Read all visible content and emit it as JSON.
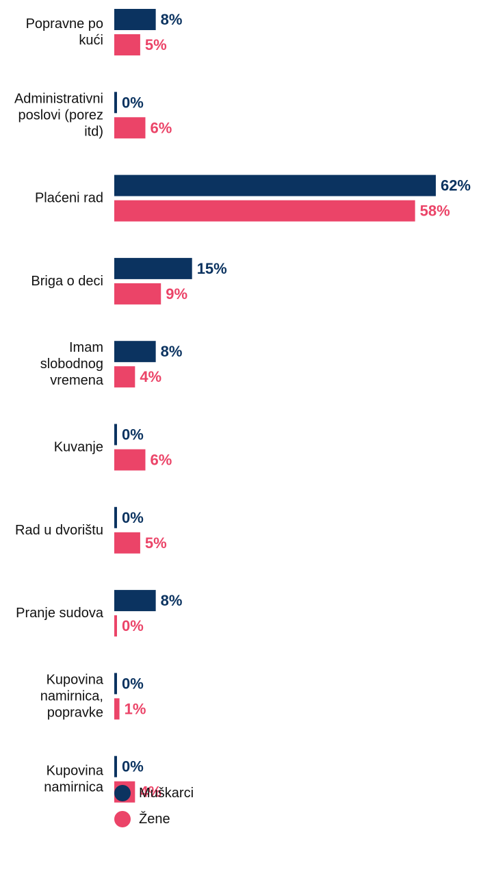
{
  "chart_data": {
    "type": "bar",
    "orientation": "horizontal",
    "categories": [
      "Popravne po kući",
      "Administrativni poslovi (porez itd)",
      "Plaćeni rad",
      "Briga o deci",
      "Imam slobodnog vremena",
      "Kuvanje",
      "Rad u dvorištu",
      "Pranje sudova",
      "Kupovina namirnica, popravke",
      "Kupovina namirnica"
    ],
    "category_lines": [
      [
        "Popravne po",
        "kući"
      ],
      [
        "Administrativni",
        "poslovi (porez",
        "itd)"
      ],
      [
        "Plaćeni rad"
      ],
      [
        "Briga o deci"
      ],
      [
        "Imam",
        "slobodnog",
        "vremena"
      ],
      [
        "Kuvanje"
      ],
      [
        "Rad u dvorištu"
      ],
      [
        "Pranje sudova"
      ],
      [
        "Kupovina",
        "namirnica,",
        "popravke"
      ],
      [
        "Kupovina",
        "namirnica"
      ]
    ],
    "series": [
      {
        "name": "Muškarci",
        "color": "#0b3360",
        "values": [
          8,
          0,
          62,
          15,
          8,
          0,
          0,
          8,
          0,
          0
        ],
        "labels": [
          "8%",
          "0%",
          "62%",
          "15%",
          "8%",
          "0%",
          "0%",
          "8%",
          "0%",
          "0%"
        ]
      },
      {
        "name": "Žene",
        "color": "#eb4468",
        "values": [
          5,
          6,
          58,
          9,
          4,
          6,
          5,
          0,
          1,
          4
        ],
        "labels": [
          "5%",
          "6%",
          "58%",
          "9%",
          "4%",
          "6%",
          "5%",
          "0%",
          "1%",
          "4%"
        ]
      }
    ],
    "unit": "%",
    "xlim": [
      0,
      62
    ],
    "legend_position": "bottom-left",
    "grid": false
  }
}
